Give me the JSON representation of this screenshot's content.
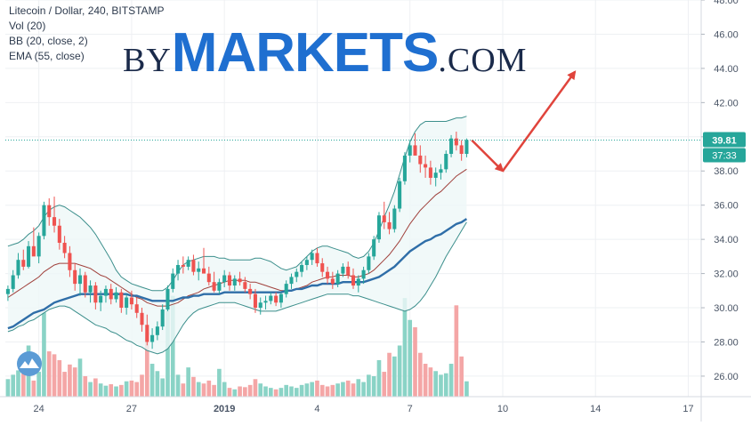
{
  "legend": {
    "line1": "Litecoin / Dollar, 240, BITSTAMP",
    "line2": "Vol (20)",
    "line3": "BB (20, close, 2)",
    "line4": "EMA (55, close)"
  },
  "brand": {
    "prefix": "BY",
    "main": "MARKETS",
    "suffix": ".COM"
  },
  "colors": {
    "up": "#26a69a",
    "down": "#ef5350",
    "vol_up": "#8ad3c6",
    "vol_down": "#f4a6a6",
    "bb_fill": "#eef8f8",
    "bb_band": "#3c8f8c",
    "bb_basis": "#a0413c",
    "ema": "#2f6ea8",
    "arrow": "#e0443c",
    "price_label": "#26a69a"
  },
  "chart_data": {
    "type": "candlestick",
    "y_range": [
      24.8,
      48.0
    ],
    "y_ticks": [
      "26.00",
      "28.00",
      "30.00",
      "32.00",
      "34.00",
      "36.00",
      "38.00",
      "40.00",
      "42.00",
      "44.00",
      "46.00",
      "48.00"
    ],
    "x_ticks": [
      "24",
      "27",
      "2019",
      "4",
      "7",
      "10",
      "14",
      "17"
    ],
    "x_tick_index": [
      6,
      24,
      42,
      60,
      78,
      96,
      114,
      132
    ],
    "last_price": "39.81",
    "countdown": "37:33",
    "candles": [
      [
        30.8,
        31.3,
        30.4,
        31.1
      ],
      [
        31.1,
        32.2,
        30.9,
        31.9
      ],
      [
        31.9,
        33.2,
        31.7,
        32.8
      ],
      [
        32.8,
        33.4,
        32.2,
        32.4
      ],
      [
        32.4,
        33.9,
        32.3,
        33.6
      ],
      [
        33.6,
        34.7,
        33.2,
        33.0
      ],
      [
        33.0,
        34.4,
        32.6,
        34.2
      ],
      [
        34.2,
        36.2,
        34.0,
        36.0
      ],
      [
        36.0,
        36.4,
        34.8,
        35.3
      ],
      [
        35.3,
        36.5,
        34.4,
        34.8
      ],
      [
        34.8,
        35.2,
        33.4,
        33.8
      ],
      [
        33.8,
        34.2,
        32.9,
        33.2
      ],
      [
        33.2,
        33.6,
        31.8,
        32.2
      ],
      [
        32.2,
        32.6,
        31.0,
        31.4
      ],
      [
        31.4,
        32.3,
        30.7,
        31.9
      ],
      [
        31.9,
        32.1,
        30.6,
        30.9
      ],
      [
        30.9,
        31.6,
        30.3,
        31.3
      ],
      [
        31.3,
        31.5,
        29.9,
        30.3
      ],
      [
        30.3,
        31.0,
        29.8,
        30.7
      ],
      [
        30.7,
        31.3,
        30.3,
        31.1
      ],
      [
        31.1,
        31.4,
        30.2,
        30.5
      ],
      [
        30.5,
        31.2,
        30.3,
        30.9
      ],
      [
        30.9,
        31.1,
        29.7,
        30.0
      ],
      [
        30.0,
        30.8,
        29.6,
        30.6
      ],
      [
        30.6,
        31.0,
        29.9,
        30.2
      ],
      [
        30.2,
        30.6,
        29.4,
        29.7
      ],
      [
        29.7,
        30.0,
        28.6,
        29.0
      ],
      [
        29.0,
        29.6,
        27.8,
        28.0
      ],
      [
        28.0,
        28.8,
        27.6,
        28.4
      ],
      [
        28.4,
        29.2,
        28.1,
        28.9
      ],
      [
        28.9,
        30.2,
        28.7,
        29.9
      ],
      [
        29.9,
        31.3,
        29.8,
        31.1
      ],
      [
        31.1,
        32.3,
        30.9,
        32.0
      ],
      [
        32.0,
        32.8,
        31.6,
        32.5
      ],
      [
        32.5,
        33.0,
        32.0,
        32.4
      ],
      [
        32.4,
        33.0,
        32.2,
        32.8
      ],
      [
        32.8,
        33.1,
        31.9,
        32.1
      ],
      [
        32.1,
        32.7,
        31.6,
        32.3
      ],
      [
        32.3,
        33.5,
        32.1,
        32.0
      ],
      [
        32.0,
        32.4,
        31.3,
        31.5
      ],
      [
        31.5,
        32.1,
        30.9,
        31.0
      ],
      [
        31.0,
        31.7,
        30.8,
        31.5
      ],
      [
        31.5,
        32.2,
        31.2,
        31.9
      ],
      [
        31.9,
        32.1,
        31.0,
        31.3
      ],
      [
        31.3,
        31.9,
        31.0,
        31.7
      ],
      [
        31.7,
        32.1,
        31.3,
        31.5
      ],
      [
        31.5,
        31.8,
        30.9,
        31.1
      ],
      [
        31.1,
        31.4,
        30.5,
        30.8
      ],
      [
        30.8,
        31.1,
        29.7,
        30.0
      ],
      [
        30.0,
        30.6,
        29.6,
        30.3
      ],
      [
        30.3,
        30.7,
        29.9,
        30.4
      ],
      [
        30.4,
        30.9,
        30.2,
        30.7
      ],
      [
        30.7,
        30.9,
        30.1,
        30.3
      ],
      [
        30.3,
        30.9,
        30.0,
        30.8
      ],
      [
        30.8,
        31.6,
        30.6,
        31.4
      ],
      [
        31.4,
        32.0,
        31.1,
        31.8
      ],
      [
        31.8,
        32.3,
        31.5,
        32.1
      ],
      [
        32.1,
        32.7,
        31.8,
        32.5
      ],
      [
        32.5,
        33.0,
        32.2,
        32.8
      ],
      [
        32.8,
        33.4,
        32.5,
        33.2
      ],
      [
        33.2,
        33.5,
        32.4,
        32.6
      ],
      [
        32.6,
        32.9,
        31.8,
        32.1
      ],
      [
        32.1,
        32.4,
        31.4,
        31.7
      ],
      [
        31.7,
        32.1,
        31.1,
        31.4
      ],
      [
        31.4,
        32.2,
        31.2,
        32.0
      ],
      [
        32.0,
        32.6,
        31.8,
        32.4
      ],
      [
        32.4,
        32.7,
        31.7,
        31.9
      ],
      [
        31.9,
        32.3,
        31.1,
        31.3
      ],
      [
        31.3,
        31.9,
        30.9,
        31.7
      ],
      [
        31.7,
        32.4,
        31.4,
        32.2
      ],
      [
        32.2,
        33.2,
        32.0,
        33.0
      ],
      [
        33.0,
        34.2,
        32.8,
        34.0
      ],
      [
        34.0,
        35.6,
        33.8,
        35.4
      ],
      [
        35.4,
        36.2,
        34.6,
        35.0
      ],
      [
        35.0,
        35.6,
        34.3,
        34.6
      ],
      [
        34.6,
        36.0,
        34.4,
        35.8
      ],
      [
        35.8,
        37.6,
        35.6,
        37.4
      ],
      [
        37.4,
        39.1,
        37.2,
        38.9
      ],
      [
        38.9,
        39.8,
        38.5,
        39.5
      ],
      [
        39.5,
        40.2,
        39.0,
        38.9
      ],
      [
        38.9,
        39.5,
        37.9,
        38.4
      ],
      [
        38.4,
        38.9,
        37.6,
        38.2
      ],
      [
        38.2,
        38.6,
        37.2,
        37.6
      ],
      [
        37.6,
        38.2,
        37.1,
        37.9
      ],
      [
        37.9,
        38.4,
        37.5,
        38.1
      ],
      [
        38.1,
        39.2,
        37.9,
        39.0
      ],
      [
        39.0,
        40.1,
        38.8,
        39.9
      ],
      [
        39.9,
        40.3,
        39.2,
        39.5
      ],
      [
        39.5,
        39.8,
        38.6,
        39.0
      ],
      [
        39.0,
        39.9,
        38.8,
        39.81
      ]
    ],
    "volume": [
      0.24,
      0.3,
      0.36,
      0.45,
      0.7,
      0.22,
      0.34,
      1.15,
      0.62,
      0.58,
      0.5,
      0.34,
      0.44,
      0.4,
      0.52,
      0.28,
      0.2,
      0.25,
      0.18,
      0.15,
      0.17,
      0.14,
      0.16,
      0.21,
      0.22,
      0.2,
      0.3,
      0.88,
      0.45,
      0.35,
      0.25,
      1.2,
      1.38,
      0.3,
      0.18,
      0.4,
      0.27,
      0.2,
      0.18,
      0.22,
      0.16,
      0.38,
      0.2,
      0.12,
      0.1,
      0.14,
      0.13,
      0.16,
      0.24,
      0.18,
      0.14,
      0.12,
      0.1,
      0.12,
      0.16,
      0.14,
      0.12,
      0.16,
      0.18,
      0.2,
      0.22,
      0.16,
      0.14,
      0.16,
      0.18,
      0.2,
      0.22,
      0.18,
      0.24,
      0.2,
      0.3,
      0.28,
      0.5,
      0.34,
      0.6,
      0.55,
      0.7,
      1.35,
      1.05,
      0.95,
      0.6,
      0.45,
      0.4,
      0.35,
      0.3,
      0.32,
      0.45,
      1.25,
      0.55,
      0.21
    ],
    "bb_upper": [
      33.6,
      33.7,
      33.8,
      34.0,
      34.3,
      34.5,
      34.8,
      35.3,
      35.7,
      35.9,
      36.0,
      35.9,
      35.7,
      35.5,
      35.3,
      35.0,
      34.7,
      34.3,
      33.8,
      33.3,
      32.8,
      32.2,
      31.8,
      31.6,
      31.4,
      31.3,
      31.2,
      31.1,
      31.0,
      31.0,
      31.0,
      31.2,
      31.6,
      32.1,
      32.5,
      32.7,
      32.8,
      32.9,
      33.0,
      33.0,
      33.0,
      32.9,
      32.9,
      32.8,
      32.8,
      32.8,
      32.8,
      32.8,
      32.9,
      32.9,
      32.8,
      32.7,
      32.5,
      32.3,
      32.2,
      32.3,
      32.4,
      32.7,
      33.0,
      33.3,
      33.5,
      33.6,
      33.6,
      33.5,
      33.4,
      33.3,
      33.2,
      33.0,
      32.9,
      33.0,
      33.3,
      33.8,
      34.5,
      35.3,
      36.0,
      36.8,
      37.8,
      38.8,
      39.7,
      40.3,
      40.7,
      40.9,
      40.9,
      40.9,
      40.9,
      40.9,
      41.0,
      41.1,
      41.1,
      41.2
    ],
    "bb_basis": [
      30.6,
      30.8,
      31.0,
      31.2,
      31.4,
      31.6,
      31.8,
      32.1,
      32.3,
      32.5,
      32.6,
      32.6,
      32.6,
      32.6,
      32.5,
      32.4,
      32.3,
      32.1,
      31.9,
      31.8,
      31.6,
      31.4,
      31.2,
      31.0,
      30.8,
      30.6,
      30.5,
      30.3,
      30.2,
      30.1,
      30.1,
      30.1,
      30.2,
      30.3,
      30.5,
      30.7,
      30.8,
      30.9,
      31.1,
      31.2,
      31.3,
      31.4,
      31.5,
      31.6,
      31.6,
      31.6,
      31.6,
      31.5,
      31.5,
      31.4,
      31.3,
      31.2,
      31.1,
      31.0,
      31.0,
      31.0,
      31.1,
      31.2,
      31.3,
      31.5,
      31.6,
      31.7,
      31.8,
      31.8,
      31.9,
      31.9,
      31.9,
      31.8,
      31.8,
      31.9,
      32.0,
      32.2,
      32.5,
      32.8,
      33.1,
      33.5,
      33.9,
      34.4,
      34.9,
      35.3,
      35.7,
      36.0,
      36.3,
      36.6,
      36.8,
      37.1,
      37.4,
      37.7,
      37.9,
      38.1
    ],
    "bb_lower": [
      28.6,
      28.7,
      28.9,
      29.0,
      29.2,
      29.3,
      29.5,
      29.7,
      29.9,
      30.0,
      30.1,
      30.1,
      30.0,
      29.8,
      29.6,
      29.4,
      29.2,
      29.0,
      28.9,
      28.8,
      28.6,
      28.5,
      28.3,
      28.1,
      28.0,
      27.8,
      27.7,
      27.5,
      27.4,
      27.3,
      27.4,
      27.6,
      28.0,
      28.5,
      29.0,
      29.4,
      29.7,
      29.9,
      30.0,
      30.1,
      30.2,
      30.3,
      30.3,
      30.3,
      30.3,
      30.2,
      30.1,
      30.0,
      29.9,
      29.8,
      29.8,
      29.8,
      29.8,
      29.9,
      30.0,
      30.1,
      30.2,
      30.3,
      30.4,
      30.5,
      30.6,
      30.7,
      30.8,
      30.8,
      30.8,
      30.8,
      30.8,
      30.7,
      30.7,
      30.6,
      30.5,
      30.4,
      30.3,
      30.2,
      30.1,
      30.0,
      29.9,
      29.8,
      29.9,
      30.1,
      30.4,
      30.8,
      31.3,
      31.8,
      32.4,
      33.0,
      33.5,
      34.0,
      34.5,
      35.0
    ],
    "ema": [
      28.8,
      28.9,
      29.1,
      29.3,
      29.5,
      29.7,
      29.8,
      29.9,
      30.1,
      30.3,
      30.4,
      30.5,
      30.6,
      30.7,
      30.8,
      30.8,
      30.8,
      30.8,
      30.8,
      30.8,
      30.8,
      30.8,
      30.8,
      30.8,
      30.7,
      30.7,
      30.6,
      30.5,
      30.4,
      30.4,
      30.4,
      30.4,
      30.4,
      30.5,
      30.6,
      30.6,
      30.7,
      30.7,
      30.8,
      30.8,
      30.8,
      30.8,
      30.9,
      30.9,
      30.9,
      30.9,
      30.9,
      30.9,
      30.9,
      30.9,
      30.9,
      30.9,
      30.9,
      30.9,
      31.0,
      31.0,
      31.1,
      31.1,
      31.2,
      31.3,
      31.3,
      31.4,
      31.4,
      31.4,
      31.4,
      31.5,
      31.5,
      31.5,
      31.5,
      31.5,
      31.6,
      31.7,
      31.8,
      32.0,
      32.2,
      32.4,
      32.7,
      33.0,
      33.3,
      33.5,
      33.7,
      33.9,
      34.0,
      34.2,
      34.3,
      34.5,
      34.7,
      34.9,
      35.0,
      35.2
    ],
    "projection": [
      [
        90,
        39.8
      ],
      [
        96,
        38.0
      ],
      [
        110,
        43.8
      ]
    ]
  }
}
